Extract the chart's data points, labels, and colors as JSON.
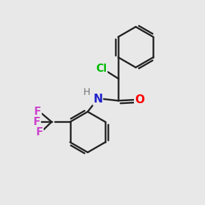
{
  "background_color": "#e8e8e8",
  "bond_color": "#222222",
  "bond_width": 1.8,
  "atoms": {
    "Cl": {
      "color": "#00bb00",
      "fontsize": 11,
      "fontweight": "bold"
    },
    "O": {
      "color": "#ff0000",
      "fontsize": 12,
      "fontweight": "bold"
    },
    "N": {
      "color": "#2222cc",
      "fontsize": 12,
      "fontweight": "bold"
    },
    "H": {
      "color": "#777777",
      "fontsize": 10,
      "fontweight": "normal"
    },
    "F": {
      "color": "#cc44cc",
      "fontsize": 11,
      "fontweight": "bold"
    }
  },
  "figsize": [
    3.0,
    3.0
  ],
  "dpi": 100
}
